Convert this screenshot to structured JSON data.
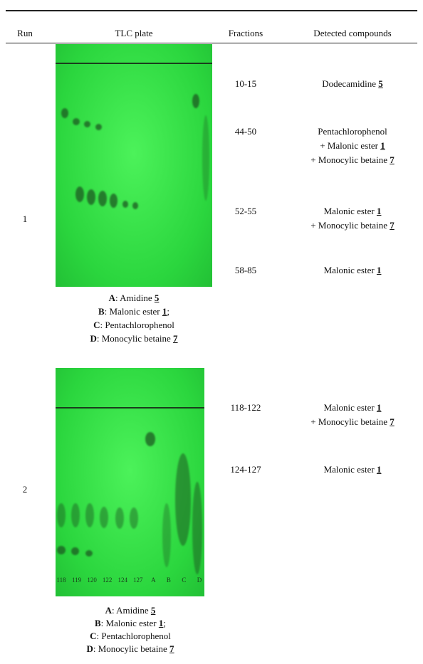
{
  "header": [
    "Run",
    "TLC plate",
    "Fractions",
    "Detected compounds"
  ],
  "rows": [
    {
      "run": "1",
      "legend": [
        {
          "k": "A",
          "t": ": Amidine",
          "n": "5"
        },
        {
          "k": "B",
          "t": ": Malonic ester",
          "n": "1",
          "s": ";"
        },
        {
          "k": "C",
          "t": ": Pentachlorophenol"
        },
        {
          "k": "D",
          "t": ": Monocylic betaine",
          "n": "7"
        }
      ],
      "fractions": [
        "10-15",
        "44-50",
        "52-55",
        "58-85"
      ],
      "compounds": [
        [
          {
            "t": "Dodecamidine",
            "n": "5"
          }
        ],
        [
          {
            "t": "Pentachlorophenol"
          },
          {
            "t": "+ Malonic ester",
            "n": "1"
          },
          {
            "t": "+ Monocylic betaine",
            "n": "7"
          }
        ],
        [
          {
            "t": "Malonic ester",
            "n": "1"
          },
          {
            "t": "+ Monocylic betaine",
            "n": "7"
          }
        ],
        [
          {
            "t": "Malonic ester",
            "n": "1"
          }
        ]
      ]
    },
    {
      "run": "2",
      "lanes": [
        "118",
        "119",
        "120",
        "122",
        "124",
        "127",
        "A",
        "B",
        "C",
        "D"
      ],
      "legend": [
        {
          "k": "A",
          "t": ": Amidine",
          "n": "5"
        },
        {
          "k": "B",
          "t": ": Malonic ester",
          "n": "1",
          "s": ";"
        },
        {
          "k": "C",
          "t": ": Pentachlorophenol"
        },
        {
          "k": "D",
          "t": ": Monocylic betaine",
          "n": "7"
        }
      ],
      "fractions": [
        "118-122",
        "124-127"
      ],
      "compounds": [
        [
          {
            "t": "Malonic ester",
            "n": "1"
          },
          {
            "t": "+ Monocylic betaine",
            "n": "7"
          }
        ],
        [
          {
            "t": "Malonic ester",
            "n": "1"
          }
        ]
      ]
    }
  ]
}
